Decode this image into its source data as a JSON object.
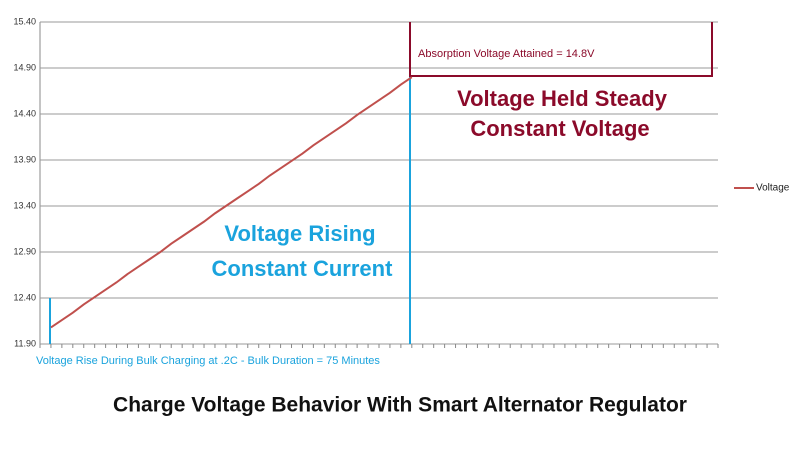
{
  "chart_data": {
    "type": "line",
    "title": "Charge Voltage Behavior With Smart Alternator Regulator",
    "annotations": [
      "Absorption Voltage Attained = 14.8V",
      "Voltage Held Steady",
      "Constant Voltage",
      "Voltage Rising",
      "Constant Current",
      "Voltage Rise During Bulk Charging at .2C - Bulk Duration = 75 Minutes"
    ],
    "categories": [
      null,
      null,
      null,
      null,
      null,
      null,
      null,
      null,
      null,
      null,
      null,
      null,
      null,
      null,
      null,
      null,
      null,
      null,
      null,
      null,
      null,
      null,
      null,
      null,
      null,
      null,
      null,
      null,
      null,
      null,
      null,
      null,
      null,
      null,
      null,
      null,
      null,
      null,
      null,
      null,
      null,
      null,
      null,
      null,
      null,
      null,
      null,
      null,
      null,
      null,
      null,
      null,
      null,
      null,
      null,
      null,
      null,
      null,
      null,
      null,
      null,
      null,
      null
    ],
    "series": [
      {
        "name": "Voltage",
        "color": "#c0504d",
        "values": [
          null,
          12.08,
          12.16,
          12.24,
          12.33,
          12.41,
          12.49,
          12.57,
          12.66,
          12.74,
          12.82,
          12.9,
          12.99,
          13.07,
          13.15,
          13.23,
          13.32,
          13.4,
          13.48,
          13.56,
          13.64,
          13.73,
          13.81,
          13.89,
          13.97,
          14.06,
          14.14,
          14.22,
          14.3,
          14.39,
          14.47,
          14.55,
          14.63,
          14.72,
          14.8,
          null,
          null,
          null,
          null,
          null,
          null,
          null,
          null,
          null,
          null,
          null,
          null,
          null,
          null,
          null,
          null,
          null,
          null,
          null,
          null,
          null,
          null,
          null,
          null,
          null,
          null,
          null,
          null
        ]
      }
    ],
    "ylim": [
      11.9,
      15.4
    ],
    "yticks": [
      {
        "value": 11.9,
        "label": "11.90"
      },
      {
        "value": 12.4,
        "label": "12.40"
      },
      {
        "value": 12.9,
        "label": "12.90"
      },
      {
        "value": 13.4,
        "label": "13.40"
      },
      {
        "value": 13.9,
        "label": "13.90"
      },
      {
        "value": 14.4,
        "label": "14.40"
      },
      {
        "value": 14.9,
        "label": "14.90"
      },
      {
        "value": 15.4,
        "label": "15.40"
      }
    ],
    "grid": true,
    "legend": "right"
  }
}
